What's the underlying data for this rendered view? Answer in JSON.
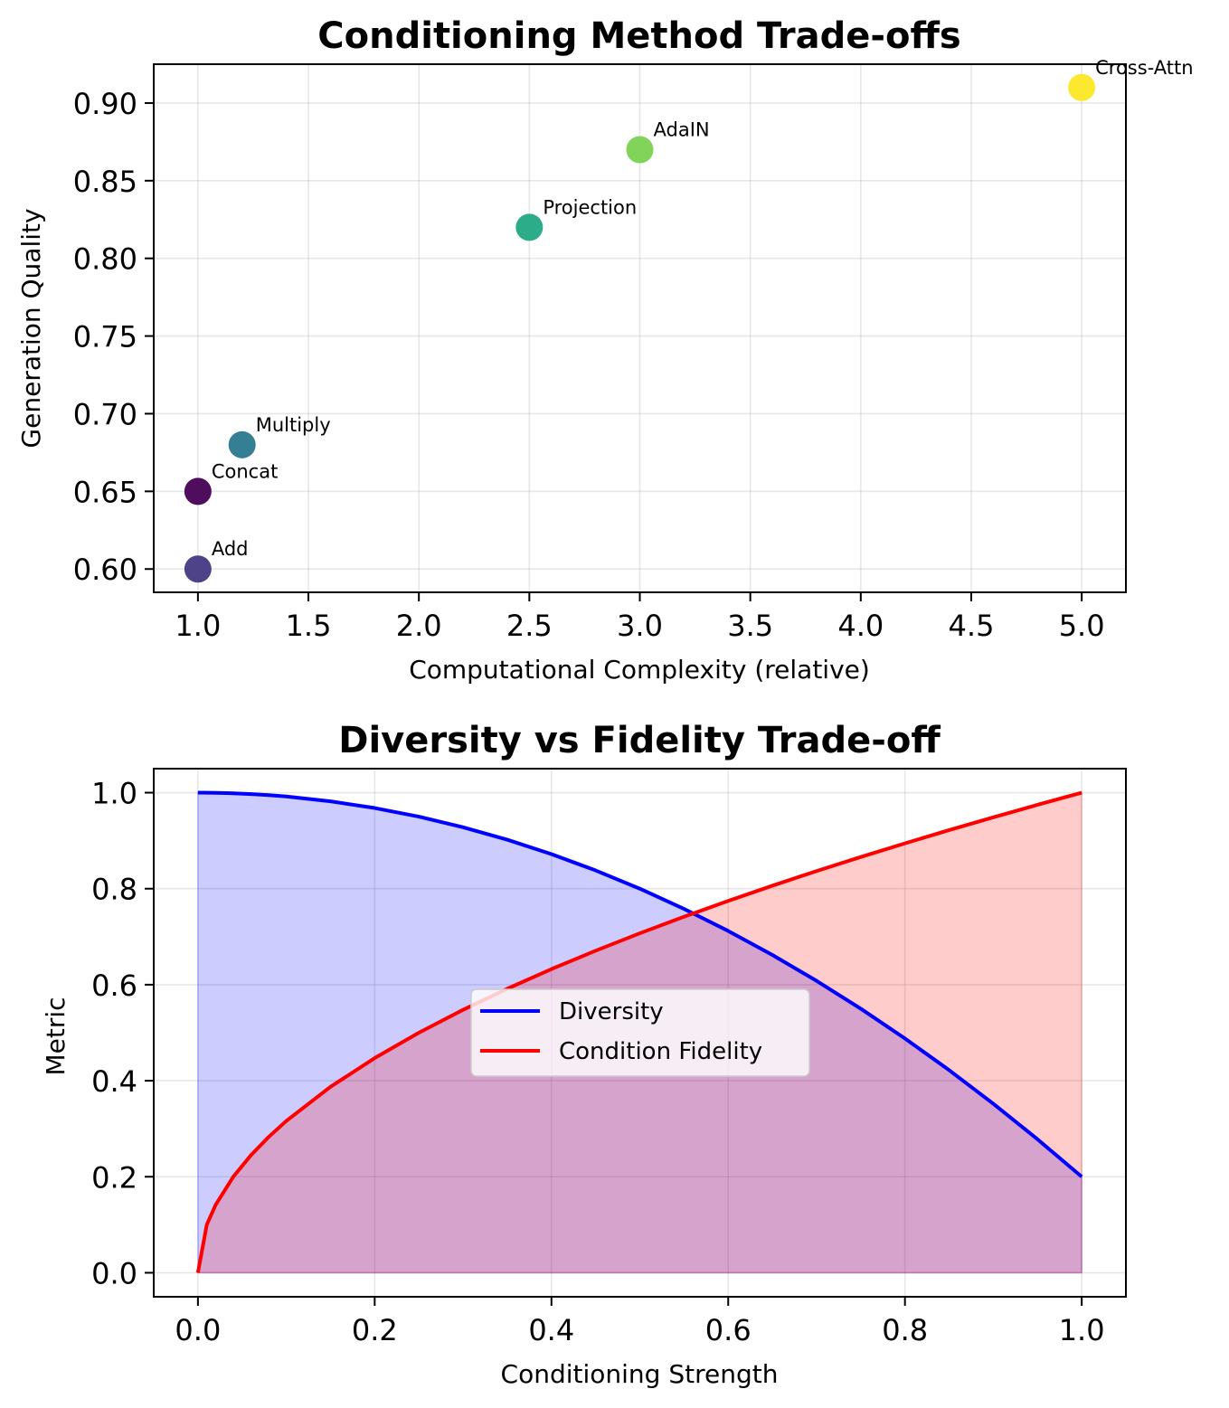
{
  "chart_data": [
    {
      "type": "scatter",
      "title": "Conditioning Method Trade-offs",
      "xlabel": "Computational Complexity (relative)",
      "ylabel": "Generation Quality",
      "xlim": [
        0.8,
        5.2
      ],
      "ylim": [
        0.585,
        0.925
      ],
      "grid": true,
      "xticks": [
        "1.0",
        "1.5",
        "2.0",
        "2.5",
        "3.0",
        "3.5",
        "4.0",
        "4.5",
        "5.0"
      ],
      "xtick_values": [
        1.0,
        1.5,
        2.0,
        2.5,
        3.0,
        3.5,
        4.0,
        4.5,
        5.0
      ],
      "yticks": [
        "0.60",
        "0.65",
        "0.70",
        "0.75",
        "0.80",
        "0.85",
        "0.90"
      ],
      "ytick_values": [
        0.6,
        0.65,
        0.7,
        0.75,
        0.8,
        0.85,
        0.9
      ],
      "points": [
        {
          "label": "Concat",
          "x": 1.0,
          "y": 0.65,
          "color": "#440154"
        },
        {
          "label": "Add",
          "x": 1.0,
          "y": 0.6,
          "color": "#443983"
        },
        {
          "label": "Multiply",
          "x": 1.2,
          "y": 0.68,
          "color": "#2a788e"
        },
        {
          "label": "Projection",
          "x": 2.5,
          "y": 0.82,
          "color": "#22a884"
        },
        {
          "label": "AdaIN",
          "x": 3.0,
          "y": 0.87,
          "color": "#7ad151"
        },
        {
          "label": "Cross-Attn",
          "x": 5.0,
          "y": 0.91,
          "color": "#fde725"
        }
      ]
    },
    {
      "type": "area",
      "title": "Diversity vs Fidelity Trade-off",
      "xlabel": "Conditioning Strength",
      "ylabel": "Metric",
      "xlim": [
        -0.05,
        1.05
      ],
      "ylim": [
        -0.05,
        1.05
      ],
      "grid": true,
      "legend_position": "center",
      "xticks": [
        "0.0",
        "0.2",
        "0.4",
        "0.6",
        "0.8",
        "1.0"
      ],
      "xtick_values": [
        0.0,
        0.2,
        0.4,
        0.6,
        0.8,
        1.0
      ],
      "yticks": [
        "0.0",
        "0.2",
        "0.4",
        "0.6",
        "0.8",
        "1.0"
      ],
      "ytick_values": [
        0.0,
        0.2,
        0.4,
        0.6,
        0.8,
        1.0
      ],
      "x": [
        0.0,
        0.01,
        0.02,
        0.04,
        0.06,
        0.08,
        0.1,
        0.15,
        0.2,
        0.25,
        0.3,
        0.35,
        0.4,
        0.45,
        0.5,
        0.55,
        0.6,
        0.65,
        0.7,
        0.75,
        0.8,
        0.85,
        0.9,
        0.95,
        1.0
      ],
      "series": [
        {
          "name": "Diversity",
          "color": "#0000ff",
          "fill_color": "#0000ff",
          "values": [
            1.0,
            0.99992,
            0.99968,
            0.99872,
            0.99712,
            0.99488,
            0.992,
            0.982,
            0.968,
            0.95,
            0.928,
            0.902,
            0.872,
            0.838,
            0.8,
            0.758,
            0.712,
            0.662,
            0.608,
            0.55,
            0.488,
            0.422,
            0.352,
            0.278,
            0.2
          ]
        },
        {
          "name": "Condition Fidelity",
          "color": "#ff0000",
          "fill_color": "#ff0000",
          "values": [
            0.0,
            0.1,
            0.1414,
            0.2,
            0.2449,
            0.2828,
            0.3162,
            0.3873,
            0.4472,
            0.5,
            0.5477,
            0.5916,
            0.6325,
            0.6708,
            0.7071,
            0.7416,
            0.7746,
            0.8062,
            0.8367,
            0.866,
            0.8944,
            0.922,
            0.9487,
            0.9747,
            1.0
          ]
        }
      ]
    }
  ]
}
